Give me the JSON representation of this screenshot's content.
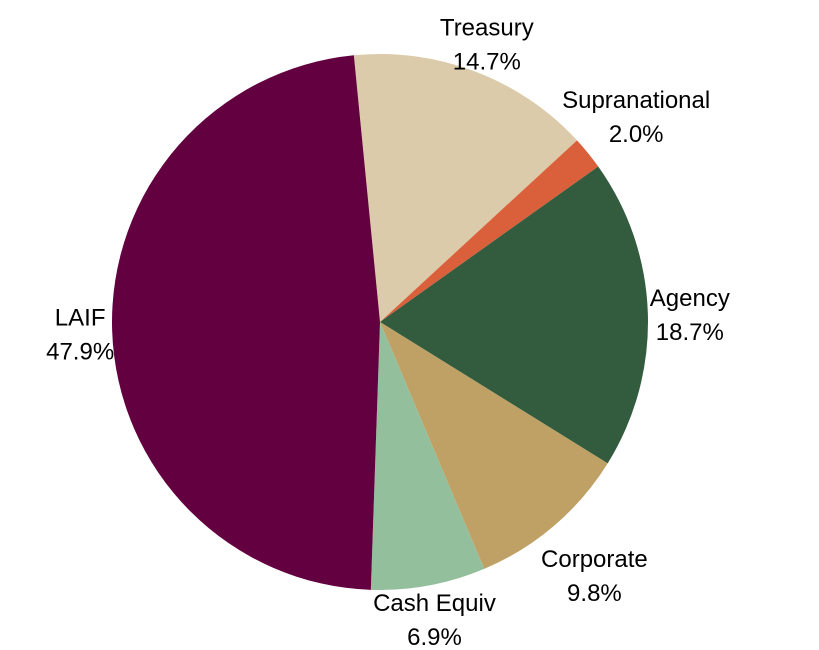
{
  "chart_data": {
    "type": "pie",
    "categories": [
      "Treasury",
      "Supranational",
      "Agency",
      "Corporate",
      "Cash Equiv",
      "LAIF"
    ],
    "values": [
      14.7,
      2.0,
      18.7,
      9.8,
      6.9,
      47.9
    ],
    "value_labels": [
      "14.7%",
      "2.0%",
      "18.7%",
      "9.8%",
      "6.9%",
      "47.9%"
    ],
    "colors": [
      "#dccbaa",
      "#d9603a",
      "#335c3e",
      "#bfa065",
      "#94bf9d",
      "#630040"
    ]
  }
}
